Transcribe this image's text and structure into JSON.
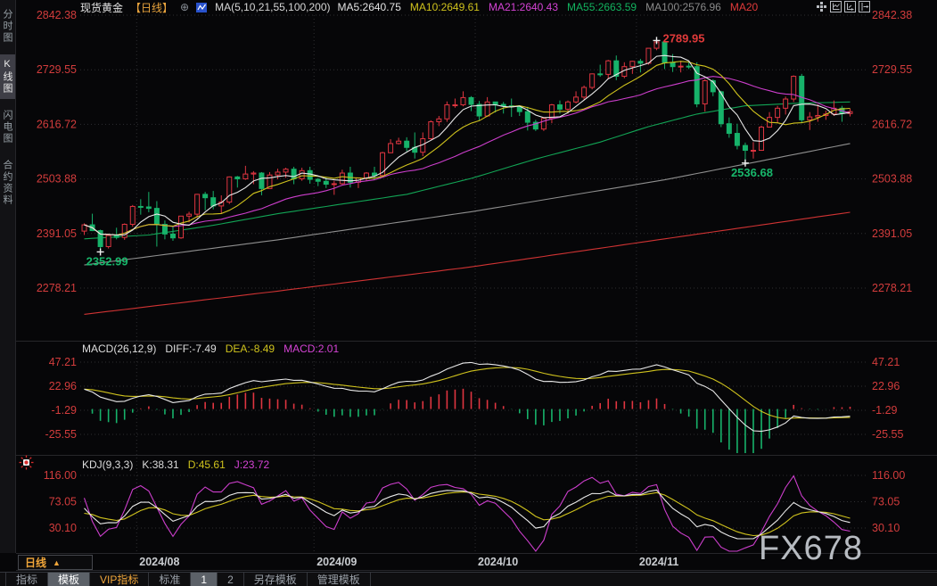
{
  "window": {
    "watermark": "FX678"
  },
  "icons": {
    "add_compare": "⊕",
    "period_arrow": "▲"
  },
  "sidebar": {
    "tabs": [
      {
        "label": "分时图",
        "active": false
      },
      {
        "label": "K线图",
        "active": true
      },
      {
        "label": "闪电图",
        "active": false
      },
      {
        "label": "合约资料",
        "active": false
      }
    ]
  },
  "header": {
    "symbol": "现货黄金",
    "period": "【日线】",
    "ma_title": "MA(5,10,21,55,100,200)",
    "ma_items": [
      {
        "label": "MA5:2640.75",
        "color": "#e3e3e3"
      },
      {
        "label": "MA10:2649.61",
        "color": "#cfc21d"
      },
      {
        "label": "MA21:2640.43",
        "color": "#d443d4"
      },
      {
        "label": "MA55:2663.59",
        "color": "#13b35f"
      },
      {
        "label": "MA100:2576.96",
        "color": "#8a8a8a"
      },
      {
        "label": "MA20",
        "color": "#e03a3a"
      }
    ]
  },
  "macd": {
    "title": "MACD(26,12,9)",
    "diff_label": "DIFF:-7.49",
    "dea_label": "DEA:-8.49",
    "macd_label": "MACD:2.01"
  },
  "kdj": {
    "title": "KDJ(9,3,3)",
    "k_label": "K:38.31",
    "d_label": "D:45.61",
    "j_label": "J:23.72"
  },
  "xaxis": {
    "period_label": "日线"
  },
  "toolbar": {
    "tabs": [
      {
        "label": "指标",
        "active": false,
        "vip": false
      },
      {
        "label": "模板",
        "active": true,
        "vip": false
      },
      {
        "label": "VIP指标",
        "active": false,
        "vip": true
      },
      {
        "label": "标准",
        "active": false,
        "vip": false
      },
      {
        "label": "1",
        "active": true,
        "vip": false
      },
      {
        "label": "2",
        "active": false,
        "vip": false
      },
      {
        "label": "另存模板",
        "active": false,
        "vip": false
      },
      {
        "label": "管理模板",
        "active": false,
        "vip": false
      }
    ]
  },
  "colors": {
    "up": "#df3540",
    "down": "#17b26a",
    "ma5": "#e8e8e8",
    "ma10": "#cfc21d",
    "ma21": "#cc3ecc",
    "ma55": "#12a455",
    "ma100": "#8f8f8f",
    "ma200": "#cf3333",
    "axis_label": "#d23c3c",
    "grid": "#2e2e31",
    "date_label": "#c9ccd0",
    "diff_line": "#e8e8e8",
    "dea_line": "#cfc21d",
    "hist_pos": "#df3540",
    "hist_neg": "#17b26a",
    "k_line": "#e8e8e8",
    "d_line": "#cfc21d",
    "j_line": "#cc3ecc",
    "marker": "#f0f0f0"
  },
  "chart_data": {
    "type": "candlestick+indicators",
    "symbol": "现货黄金",
    "interval": "日线",
    "main_axis_values": [
      2842.38,
      2729.55,
      2616.72,
      2503.88,
      2391.05,
      2278.21
    ],
    "macd_axis_values": [
      47.21,
      22.96,
      -1.29,
      -25.55
    ],
    "kdj_axis_values": [
      116.0,
      73.05,
      30.1
    ],
    "month_starts": [
      {
        "label": "2024/08",
        "index": 7
      },
      {
        "label": "2024/09",
        "index": 29
      },
      {
        "label": "2024/10",
        "index": 49
      },
      {
        "label": "2024/11",
        "index": 69
      }
    ],
    "annotations": [
      {
        "text": "2789.95",
        "index": 71,
        "price": 2789.95,
        "type": "high",
        "color": "#e03a3a"
      },
      {
        "text": "2536.68",
        "index": 82,
        "price": 2536.68,
        "type": "low",
        "color": "#18b76b"
      },
      {
        "text": "2352.99",
        "index": 2,
        "price": 2352.99,
        "type": "low",
        "color": "#18b76b"
      }
    ],
    "ma_overlays_anchored": {
      "MA55": [
        [
          0,
          2380
        ],
        [
          8,
          2388
        ],
        [
          16,
          2408
        ],
        [
          24,
          2432
        ],
        [
          32,
          2452
        ],
        [
          40,
          2472
        ],
        [
          48,
          2505
        ],
        [
          56,
          2545
        ],
        [
          64,
          2580
        ],
        [
          70,
          2612
        ],
        [
          76,
          2638
        ],
        [
          82,
          2655
        ],
        [
          88,
          2660
        ],
        [
          95,
          2663
        ]
      ],
      "MA100": [
        [
          0,
          2326
        ],
        [
          24,
          2378
        ],
        [
          48,
          2436
        ],
        [
          72,
          2502
        ],
        [
          95,
          2577
        ]
      ],
      "MA200": [
        [
          0,
          2224
        ],
        [
          24,
          2272
        ],
        [
          48,
          2322
        ],
        [
          72,
          2380
        ],
        [
          95,
          2435
        ]
      ]
    },
    "candles": [
      [
        2396,
        2412,
        2388,
        2409
      ],
      [
        2409,
        2432,
        2396,
        2397
      ],
      [
        2397,
        2399,
        2352.99,
        2364
      ],
      [
        2364,
        2390,
        2360,
        2387
      ],
      [
        2387,
        2403,
        2379,
        2383
      ],
      [
        2383,
        2412,
        2378,
        2410
      ],
      [
        2410,
        2450,
        2405,
        2447
      ],
      [
        2447,
        2462,
        2430,
        2446
      ],
      [
        2446,
        2477,
        2435,
        2443
      ],
      [
        2443,
        2458,
        2364,
        2410
      ],
      [
        2410,
        2418,
        2379,
        2390
      ],
      [
        2390,
        2407,
        2376,
        2382
      ],
      [
        2382,
        2427,
        2380,
        2427
      ],
      [
        2427,
        2436,
        2414,
        2431
      ],
      [
        2431,
        2473,
        2423,
        2472
      ],
      [
        2472,
        2477,
        2439,
        2465
      ],
      [
        2465,
        2479,
        2441,
        2448
      ],
      [
        2448,
        2470,
        2432,
        2456
      ],
      [
        2456,
        2509,
        2452,
        2508
      ],
      [
        2508,
        2510,
        2486,
        2504
      ],
      [
        2504,
        2531,
        2502,
        2514
      ],
      [
        2514,
        2520,
        2493,
        2516
      ],
      [
        2516,
        2518,
        2470,
        2484
      ],
      [
        2484,
        2518,
        2484,
        2512
      ],
      [
        2512,
        2525,
        2503,
        2518
      ],
      [
        2518,
        2527,
        2506,
        2524
      ],
      [
        2524,
        2529,
        2493,
        2504
      ],
      [
        2504,
        2527,
        2500,
        2521
      ],
      [
        2521,
        2529,
        2494,
        2503
      ],
      [
        2503,
        2506,
        2489,
        2499
      ],
      [
        2499,
        2507,
        2485,
        2493
      ],
      [
        2493,
        2500,
        2471,
        2494
      ],
      [
        2494,
        2523,
        2492,
        2516
      ],
      [
        2516,
        2529,
        2486,
        2497
      ],
      [
        2497,
        2507,
        2485,
        2506
      ],
      [
        2506,
        2518,
        2500,
        2516
      ],
      [
        2516,
        2529,
        2502,
        2511
      ],
      [
        2511,
        2560,
        2511,
        2558
      ],
      [
        2558,
        2586,
        2557,
        2577
      ],
      [
        2577,
        2589,
        2575,
        2582
      ],
      [
        2582,
        2590,
        2561,
        2569
      ],
      [
        2569,
        2600,
        2546,
        2559
      ],
      [
        2559,
        2600,
        2551,
        2587
      ],
      [
        2587,
        2625,
        2585,
        2622
      ],
      [
        2622,
        2634,
        2613,
        2628
      ],
      [
        2628,
        2664,
        2622,
        2657
      ],
      [
        2657,
        2670,
        2651,
        2657
      ],
      [
        2657,
        2685,
        2654,
        2672
      ],
      [
        2672,
        2675,
        2644,
        2658
      ],
      [
        2658,
        2665,
        2625,
        2634
      ],
      [
        2634,
        2673,
        2632,
        2663
      ],
      [
        2663,
        2663,
        2641,
        2658
      ],
      [
        2658,
        2663,
        2639,
        2655
      ],
      [
        2655,
        2670,
        2632,
        2653
      ],
      [
        2653,
        2655,
        2634,
        2643
      ],
      [
        2643,
        2653,
        2604,
        2621
      ],
      [
        2621,
        2626,
        2603,
        2607
      ],
      [
        2607,
        2630,
        2603,
        2629
      ],
      [
        2629,
        2659,
        2619,
        2657
      ],
      [
        2657,
        2666,
        2639,
        2648
      ],
      [
        2648,
        2666,
        2639,
        2663
      ],
      [
        2663,
        2685,
        2660,
        2673
      ],
      [
        2673,
        2697,
        2668,
        2693
      ],
      [
        2693,
        2722,
        2689,
        2721
      ],
      [
        2721,
        2740,
        2715,
        2720
      ],
      [
        2720,
        2750,
        2710,
        2748
      ],
      [
        2748,
        2759,
        2708,
        2716
      ],
      [
        2716,
        2745,
        2712,
        2736
      ],
      [
        2736,
        2748,
        2721,
        2747
      ],
      [
        2747,
        2752,
        2724,
        2743
      ],
      [
        2743,
        2774,
        2740,
        2774
      ],
      [
        2774,
        2789.95,
        2770,
        2787
      ],
      [
        2787,
        2788,
        2731,
        2744
      ],
      [
        2744,
        2762,
        2725,
        2736
      ],
      [
        2736,
        2748,
        2724,
        2737
      ],
      [
        2737,
        2745,
        2731,
        2736
      ],
      [
        2736,
        2745,
        2652,
        2659
      ],
      [
        2659,
        2710,
        2643,
        2707
      ],
      [
        2707,
        2710,
        2675,
        2684
      ],
      [
        2684,
        2686,
        2611,
        2618
      ],
      [
        2618,
        2631,
        2589,
        2598
      ],
      [
        2598,
        2618,
        2565,
        2573
      ],
      [
        2573,
        2579,
        2536.68,
        2563
      ],
      [
        2563,
        2580,
        2546,
        2563
      ],
      [
        2563,
        2614,
        2562,
        2611
      ],
      [
        2611,
        2642,
        2610,
        2631
      ],
      [
        2631,
        2655,
        2619,
        2650
      ],
      [
        2650,
        2674,
        2637,
        2669
      ],
      [
        2669,
        2718,
        2663,
        2716
      ],
      [
        2716,
        2721,
        2619,
        2626
      ],
      [
        2626,
        2642,
        2605,
        2632
      ],
      [
        2632,
        2658,
        2622,
        2635
      ],
      [
        2635,
        2645,
        2626,
        2638
      ],
      [
        2638,
        2666,
        2634,
        2650
      ],
      [
        2650,
        2655,
        2622,
        2639
      ],
      [
        2639,
        2649,
        2633,
        2643
      ]
    ]
  }
}
